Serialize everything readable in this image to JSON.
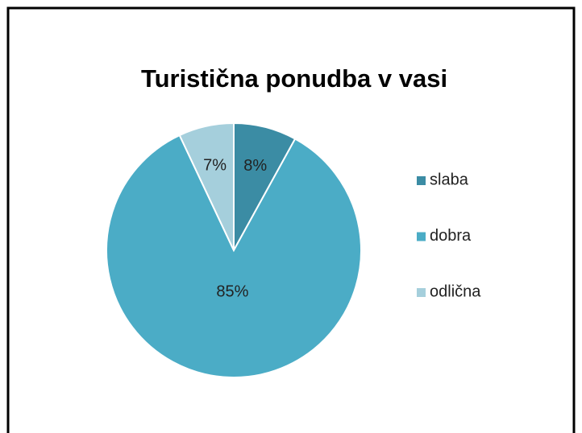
{
  "chart_data": {
    "type": "pie",
    "title": "Turistična ponudba v vasi",
    "categories": [
      "slaba",
      "dobra",
      "odlična"
    ],
    "values": [
      8,
      85,
      7
    ],
    "value_labels": [
      "8%",
      "85%",
      "7%"
    ],
    "colors": [
      "#3b8ca4",
      "#4bacc6",
      "#a5cfdc"
    ],
    "legend": "right"
  }
}
